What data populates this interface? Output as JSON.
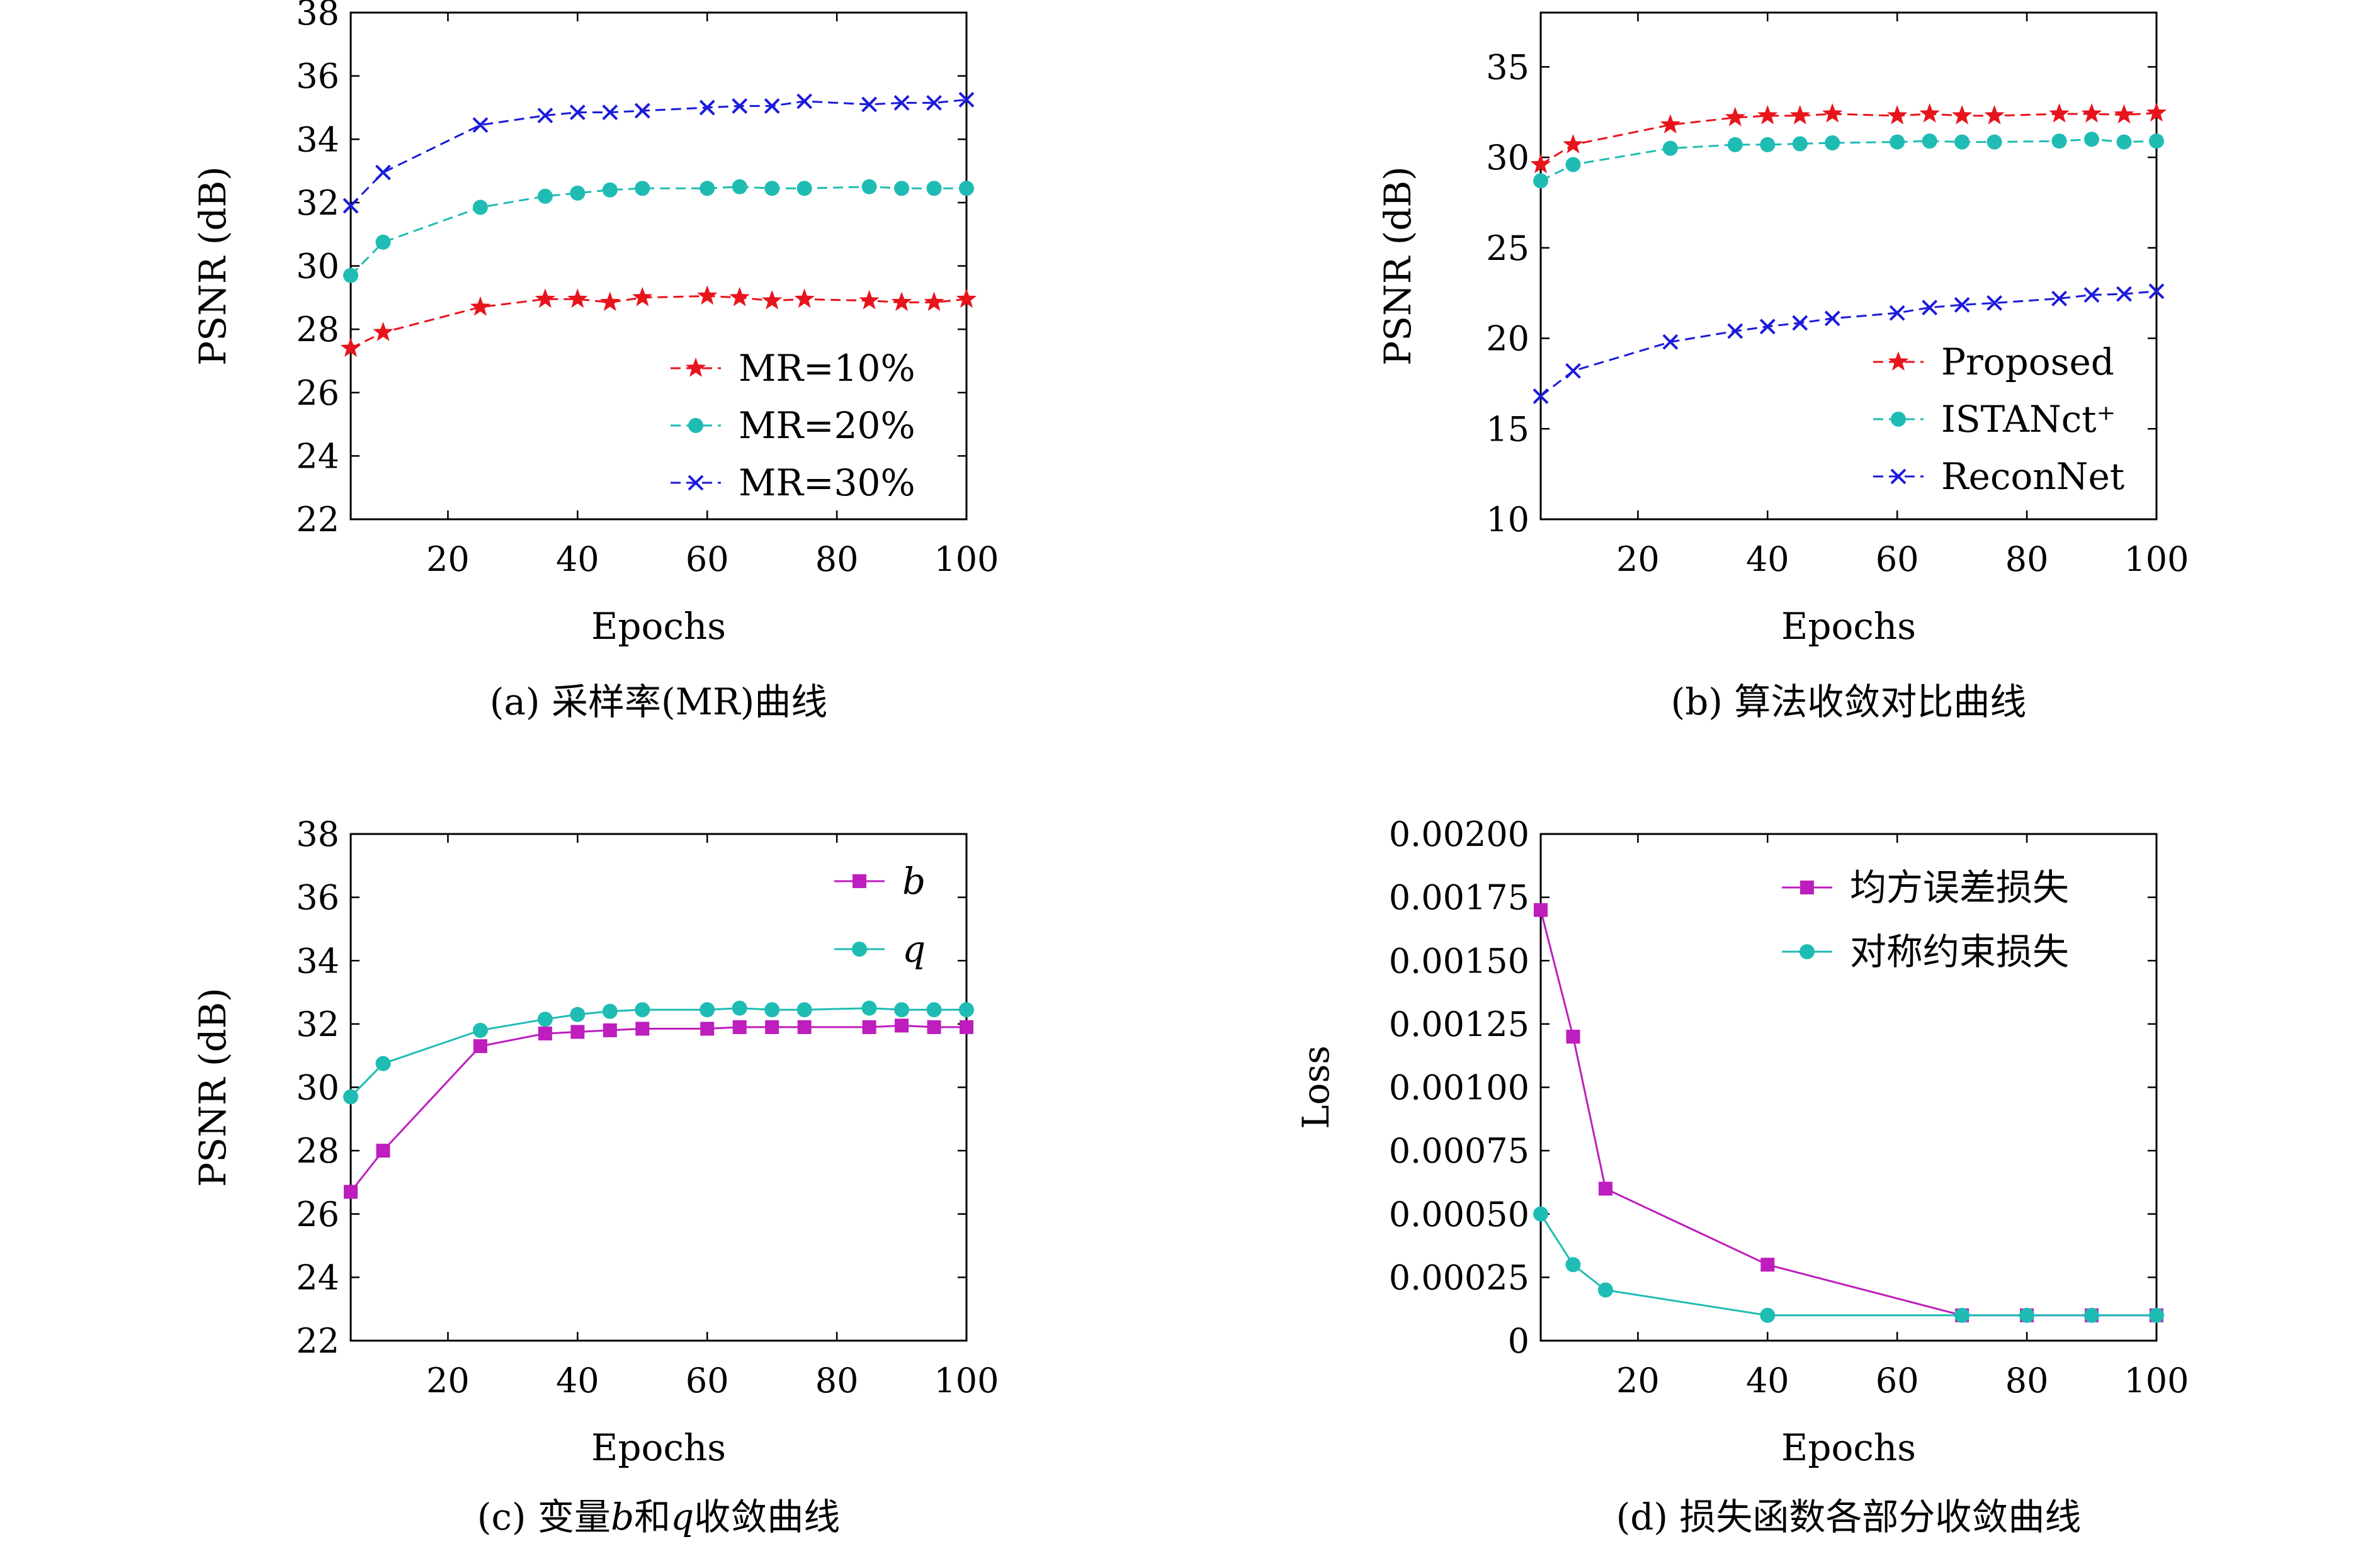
{
  "chart_data": [
    {
      "type": "line",
      "caption": "(a) 采样率(MR)曲线",
      "xlabel": "Epochs",
      "ylabel": "PSNR (dB)",
      "xlim": [
        5,
        100
      ],
      "ylim": [
        22,
        38
      ],
      "xticks": [
        20,
        40,
        60,
        80,
        100
      ],
      "yticks": [
        22,
        24,
        26,
        28,
        30,
        32,
        34,
        36,
        38
      ],
      "legend_position": "bottom-right",
      "x": [
        5,
        10,
        25,
        35,
        40,
        45,
        50,
        60,
        65,
        70,
        75,
        85,
        90,
        95,
        100
      ],
      "series": [
        {
          "name": "MR=10%",
          "color": "#e8141c",
          "marker": "star",
          "dash": true,
          "values": [
            27.4,
            27.9,
            28.7,
            28.95,
            28.95,
            28.85,
            29.0,
            29.05,
            29.0,
            28.9,
            28.95,
            28.9,
            28.85,
            28.85,
            28.95
          ]
        },
        {
          "name": "MR=20%",
          "color": "#1fbcb4",
          "marker": "circle",
          "dash": true,
          "values": [
            29.7,
            30.75,
            31.85,
            32.2,
            32.3,
            32.4,
            32.45,
            32.45,
            32.5,
            32.45,
            32.45,
            32.5,
            32.45,
            32.45,
            32.45
          ]
        },
        {
          "name": "MR=30%",
          "color": "#1a1adc",
          "marker": "x",
          "dash": true,
          "values": [
            31.9,
            32.95,
            34.45,
            34.75,
            34.85,
            34.85,
            34.9,
            35.0,
            35.05,
            35.05,
            35.2,
            35.1,
            35.15,
            35.15,
            35.25
          ]
        }
      ]
    },
    {
      "type": "line",
      "caption": "(b) 算法收敛对比曲线",
      "xlabel": "Epochs",
      "ylabel": "PSNR (dB)",
      "xlim": [
        5,
        100
      ],
      "ylim": [
        10,
        38
      ],
      "xticks": [
        20,
        40,
        60,
        80,
        100
      ],
      "yticks": [
        10,
        15,
        20,
        25,
        30,
        35
      ],
      "legend_position": "bottom-right",
      "x": [
        5,
        10,
        25,
        35,
        40,
        45,
        50,
        60,
        65,
        70,
        75,
        85,
        90,
        95,
        100
      ],
      "series": [
        {
          "name": "Proposed",
          "color": "#e8141c",
          "marker": "star",
          "dash": true,
          "values": [
            29.6,
            30.7,
            31.8,
            32.2,
            32.3,
            32.3,
            32.4,
            32.3,
            32.4,
            32.3,
            32.3,
            32.4,
            32.4,
            32.35,
            32.45
          ]
        },
        {
          "name": "ISTANct⁺",
          "color": "#1fbcb4",
          "marker": "circle",
          "dash": true,
          "values": [
            28.7,
            29.6,
            30.5,
            30.7,
            30.7,
            30.75,
            30.8,
            30.85,
            30.9,
            30.85,
            30.85,
            30.9,
            31.0,
            30.85,
            30.9
          ]
        },
        {
          "name": "ReconNet",
          "color": "#1a1adc",
          "marker": "x",
          "dash": true,
          "values": [
            16.8,
            18.2,
            19.8,
            20.4,
            20.65,
            20.85,
            21.1,
            21.4,
            21.7,
            21.85,
            21.95,
            22.2,
            22.4,
            22.45,
            22.6
          ]
        }
      ]
    },
    {
      "type": "line",
      "caption": "(c) 变量b和q收敛曲线",
      "caption_parts": [
        "(c) 变量",
        "b",
        "和",
        "q",
        "收敛曲线"
      ],
      "xlabel": "Epochs",
      "ylabel": "PSNR (dB)",
      "xlim": [
        5,
        100
      ],
      "ylim": [
        22,
        38
      ],
      "xticks": [
        20,
        40,
        60,
        80,
        100
      ],
      "yticks": [
        22,
        24,
        26,
        28,
        30,
        32,
        34,
        36,
        38
      ],
      "legend_position": "top-right",
      "x": [
        5,
        10,
        25,
        35,
        40,
        45,
        50,
        60,
        65,
        70,
        75,
        85,
        90,
        95,
        100
      ],
      "series": [
        {
          "name": "b",
          "italic": true,
          "color": "#bd1ebd",
          "marker": "square",
          "dash": false,
          "values": [
            26.7,
            28.0,
            31.3,
            31.7,
            31.75,
            31.8,
            31.85,
            31.85,
            31.9,
            31.9,
            31.9,
            31.9,
            31.95,
            31.9,
            31.9
          ]
        },
        {
          "name": "q",
          "italic": true,
          "color": "#1fbcb4",
          "marker": "circle",
          "dash": false,
          "values": [
            29.7,
            30.75,
            31.8,
            32.15,
            32.3,
            32.4,
            32.45,
            32.45,
            32.5,
            32.45,
            32.45,
            32.5,
            32.45,
            32.45,
            32.45
          ]
        }
      ]
    },
    {
      "type": "line",
      "caption": "(d) 损失函数各部分收敛曲线",
      "xlabel": "Epochs",
      "ylabel": "Loss",
      "xlim": [
        5,
        100
      ],
      "ylim": [
        0,
        0.002
      ],
      "xticks": [
        20,
        40,
        60,
        80,
        100
      ],
      "yticks": [
        0,
        0.00025,
        0.0005,
        0.00075,
        0.001,
        0.00125,
        0.0015,
        0.00175,
        0.002
      ],
      "ytick_labels": [
        "0",
        "0.00025",
        "0.00050",
        "0.00075",
        "0.00100",
        "0.00125",
        "0.00150",
        "0.00175",
        "0.00200"
      ],
      "legend_position": "top-right",
      "x": [
        5,
        10,
        15,
        40,
        70,
        80,
        90,
        100
      ],
      "series": [
        {
          "name": "均方误差损失",
          "color": "#bd1ebd",
          "marker": "square",
          "dash": false,
          "values": [
            0.0017,
            0.0012,
            0.0006,
            0.0003,
            0.0001,
            0.0001,
            0.0001,
            0.0001
          ]
        },
        {
          "name": "对称约束损失",
          "color": "#1fbcb4",
          "marker": "circle",
          "dash": false,
          "values": [
            0.0005,
            0.0003,
            0.0002,
            0.0001,
            0.0001,
            0.0001,
            0.0001,
            0.0001
          ]
        }
      ]
    }
  ]
}
